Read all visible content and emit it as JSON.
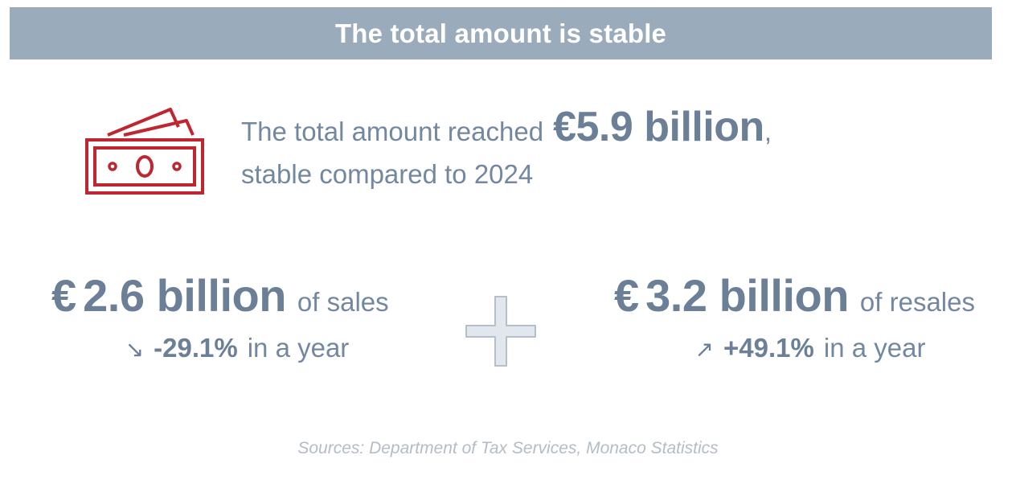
{
  "banner": {
    "title": "The total amount is stable"
  },
  "headline": {
    "prefix": "The total amount reached",
    "amount": "€5.9 billion",
    "comma": ",",
    "line2": "stable compared to 2024"
  },
  "sales": {
    "currency": "€",
    "value": "2.6 billion",
    "label": "of sales",
    "arrow": "↘",
    "change": "-29.1%",
    "suffix": "in a year"
  },
  "resales": {
    "currency": "€",
    "value": "3.2 billion",
    "label": "of resales",
    "arrow": "↗",
    "change": "+49.1%",
    "suffix": "in a year"
  },
  "source": "Sources: Department of Tax Services, Monaco Statistics",
  "icons": {
    "money": "banknotes-icon",
    "plus": "plus-icon"
  },
  "colors": {
    "banner": "#9aabbb",
    "text": "#6b7f96",
    "icon_red": "#c0262f",
    "source": "#b4bcc6"
  }
}
